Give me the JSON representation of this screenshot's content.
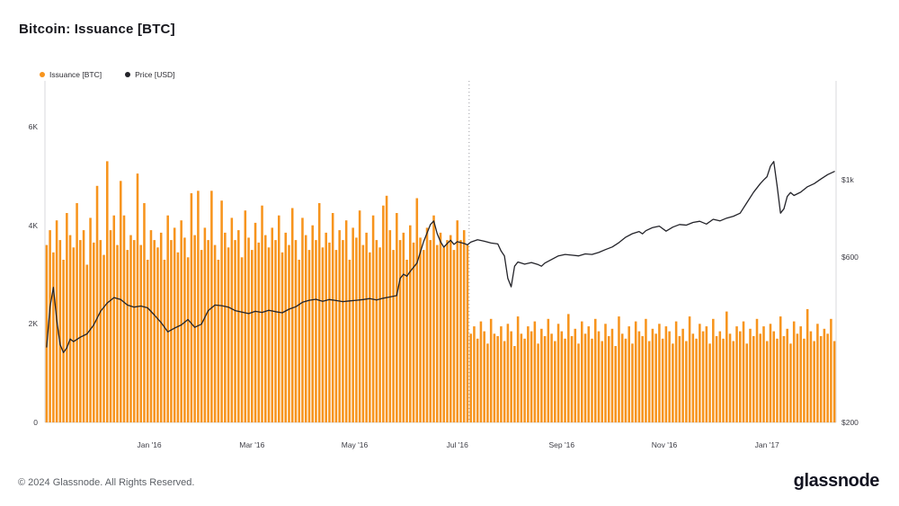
{
  "header": {
    "title": "Bitcoin: Issuance [BTC]"
  },
  "footer": {
    "copyright": "© 2024 Glassnode. All Rights Reserved.",
    "brand": "glassnode"
  },
  "chart_data": {
    "type": "bar",
    "title": "Bitcoin: Issuance [BTC]",
    "x_start_date": "2015-11-01",
    "x_step_days": 2,
    "x_tick_labels": [
      "Jan '16",
      "Mar '16",
      "May '16",
      "Jul '16",
      "Sep '16",
      "Nov '16",
      "Jan '17"
    ],
    "x_tick_index": [
      30.5,
      61,
      91.5,
      122,
      153,
      183.5,
      214
    ],
    "left_axis": {
      "label": "Issuance [BTC]",
      "ticks": [
        "0",
        "2K",
        "4K",
        "6K"
      ],
      "tick_values": [
        0,
        2000,
        4000,
        6000
      ],
      "max": 6930
    },
    "right_axis": {
      "label": "Price [USD]",
      "ticks": [
        "$200",
        "$600",
        "$1k"
      ],
      "tick_values": [
        200,
        600,
        1000
      ],
      "scale": "log",
      "min": 200,
      "max": 1930
    },
    "halving_index": 125.5,
    "grid": false,
    "colors": {
      "bars": "#F7941D",
      "line": "#232329",
      "axis": "#d9d9de",
      "halving_line": "#9a9aa2"
    },
    "series": [
      {
        "name": "Issuance [BTC]",
        "type": "bar",
        "color": "#F7941D",
        "values": [
          3600,
          3900,
          3450,
          4100,
          3700,
          3300,
          4250,
          3800,
          3550,
          4450,
          3700,
          3900,
          3200,
          4150,
          3650,
          4800,
          3700,
          3400,
          5300,
          3900,
          4200,
          3600,
          4900,
          4200,
          3500,
          3800,
          3700,
          5050,
          3600,
          4450,
          3300,
          3900,
          3700,
          3550,
          3850,
          3300,
          4200,
          3700,
          3950,
          3450,
          4100,
          3750,
          3350,
          4650,
          3800,
          4700,
          3500,
          3950,
          3700,
          4700,
          3600,
          3300,
          4500,
          3850,
          3550,
          4150,
          3700,
          3900,
          3350,
          4300,
          3750,
          3500,
          4050,
          3650,
          4400,
          3800,
          3550,
          3950,
          3700,
          4200,
          3450,
          3850,
          3600,
          4350,
          3700,
          3300,
          4150,
          3800,
          3500,
          4000,
          3700,
          4450,
          3550,
          3850,
          3650,
          4250,
          3500,
          3900,
          3700,
          4100,
          3300,
          3950,
          3750,
          4300,
          3600,
          3850,
          3450,
          4200,
          3700,
          3550,
          4400,
          4600,
          3900,
          3500,
          4250,
          3700,
          3850,
          3300,
          4000,
          3650,
          4550,
          3750,
          3500,
          3950,
          3700,
          4200,
          3600,
          3850,
          3550,
          3700,
          3800,
          3500,
          4100,
          3700,
          3900,
          3600,
          1800,
          1950,
          1700,
          2050,
          1850,
          1600,
          2100,
          1800,
          1750,
          1950,
          1650,
          2000,
          1850,
          1550,
          2150,
          1800,
          1700,
          1950,
          1850,
          2050,
          1600,
          1900,
          1750,
          2100,
          1800,
          1650,
          2000,
          1850,
          1700,
          2200,
          1750,
          1900,
          1600,
          2050,
          1800,
          1950,
          1700,
          2100,
          1850,
          1650,
          2000,
          1750,
          1900,
          1550,
          2150,
          1800,
          1700,
          1950,
          1600,
          2050,
          1850,
          1750,
          2100,
          1650,
          1900,
          1800,
          2000,
          1700,
          1950,
          1850,
          1600,
          2050,
          1750,
          1900,
          1650,
          2150,
          1800,
          1700,
          2000,
          1850,
          1950,
          1600,
          2100,
          1750,
          1850,
          1700,
          2250,
          1800,
          1650,
          1950,
          1850,
          2050,
          1600,
          1900,
          1750,
          2100,
          1800,
          1950,
          1650,
          2000,
          1850,
          1700,
          2150,
          1750,
          1900,
          1600,
          2050,
          1800,
          1950,
          1700,
          2300,
          1850,
          1650,
          2000,
          1750,
          1900,
          1800,
          2100,
          1650
        ]
      },
      {
        "name": "Price [USD]",
        "type": "line",
        "color": "#232329",
        "points": [
          [
            0,
            330
          ],
          [
            1,
            430
          ],
          [
            2,
            490
          ],
          [
            3,
            395
          ],
          [
            4,
            335
          ],
          [
            5,
            318
          ],
          [
            6,
            328
          ],
          [
            7,
            348
          ],
          [
            8,
            342
          ],
          [
            10,
            352
          ],
          [
            12,
            360
          ],
          [
            14,
            382
          ],
          [
            16,
            418
          ],
          [
            18,
            442
          ],
          [
            20,
            458
          ],
          [
            22,
            452
          ],
          [
            24,
            436
          ],
          [
            26,
            430
          ],
          [
            28,
            433
          ],
          [
            30,
            428
          ],
          [
            32,
            408
          ],
          [
            34,
            388
          ],
          [
            36,
            365
          ],
          [
            38,
            374
          ],
          [
            40,
            382
          ],
          [
            42,
            396
          ],
          [
            44,
            376
          ],
          [
            46,
            384
          ],
          [
            48,
            420
          ],
          [
            50,
            436
          ],
          [
            52,
            434
          ],
          [
            54,
            430
          ],
          [
            56,
            420
          ],
          [
            58,
            416
          ],
          [
            60,
            412
          ],
          [
            62,
            418
          ],
          [
            64,
            415
          ],
          [
            66,
            421
          ],
          [
            68,
            417
          ],
          [
            70,
            414
          ],
          [
            72,
            424
          ],
          [
            74,
            431
          ],
          [
            76,
            444
          ],
          [
            78,
            450
          ],
          [
            80,
            453
          ],
          [
            82,
            447
          ],
          [
            84,
            452
          ],
          [
            86,
            449
          ],
          [
            88,
            446
          ],
          [
            90,
            448
          ],
          [
            92,
            450
          ],
          [
            94,
            452
          ],
          [
            96,
            455
          ],
          [
            98,
            451
          ],
          [
            100,
            456
          ],
          [
            102,
            460
          ],
          [
            104,
            464
          ],
          [
            105,
            520
          ],
          [
            106,
            535
          ],
          [
            107,
            528
          ],
          [
            108,
            545
          ],
          [
            110,
            576
          ],
          [
            112,
            665
          ],
          [
            114,
            744
          ],
          [
            115,
            762
          ],
          [
            116,
            700
          ],
          [
            117,
            664
          ],
          [
            118,
            640
          ],
          [
            119,
            656
          ],
          [
            120,
            670
          ],
          [
            121,
            652
          ],
          [
            122,
            664
          ],
          [
            124,
            656
          ],
          [
            125,
            650
          ],
          [
            126,
            662
          ],
          [
            128,
            672
          ],
          [
            130,
            666
          ],
          [
            132,
            658
          ],
          [
            134,
            654
          ],
          [
            135,
            624
          ],
          [
            136,
            604
          ],
          [
            137,
            520
          ],
          [
            138,
            492
          ],
          [
            139,
            564
          ],
          [
            140,
            580
          ],
          [
            142,
            572
          ],
          [
            144,
            578
          ],
          [
            146,
            570
          ],
          [
            147,
            564
          ],
          [
            148,
            576
          ],
          [
            150,
            590
          ],
          [
            152,
            604
          ],
          [
            154,
            610
          ],
          [
            156,
            607
          ],
          [
            158,
            604
          ],
          [
            160,
            612
          ],
          [
            162,
            610
          ],
          [
            164,
            618
          ],
          [
            166,
            630
          ],
          [
            168,
            641
          ],
          [
            170,
            660
          ],
          [
            172,
            684
          ],
          [
            174,
            700
          ],
          [
            176,
            710
          ],
          [
            177,
            699
          ],
          [
            178,
            714
          ],
          [
            180,
            729
          ],
          [
            182,
            736
          ],
          [
            184,
            712
          ],
          [
            186,
            731
          ],
          [
            188,
            744
          ],
          [
            190,
            741
          ],
          [
            192,
            754
          ],
          [
            194,
            760
          ],
          [
            196,
            746
          ],
          [
            198,
            770
          ],
          [
            200,
            762
          ],
          [
            202,
            776
          ],
          [
            204,
            786
          ],
          [
            206,
            802
          ],
          [
            208,
            860
          ],
          [
            210,
            922
          ],
          [
            212,
            976
          ],
          [
            213,
            1000
          ],
          [
            214,
            1022
          ],
          [
            215,
            1096
          ],
          [
            216,
            1130
          ],
          [
            217,
            958
          ],
          [
            218,
            802
          ],
          [
            219,
            826
          ],
          [
            220,
            896
          ],
          [
            221,
            920
          ],
          [
            222,
            902
          ],
          [
            224,
            922
          ],
          [
            226,
            956
          ],
          [
            228,
            976
          ],
          [
            230,
            1006
          ],
          [
            232,
            1036
          ],
          [
            234,
            1058
          ]
        ]
      }
    ]
  }
}
